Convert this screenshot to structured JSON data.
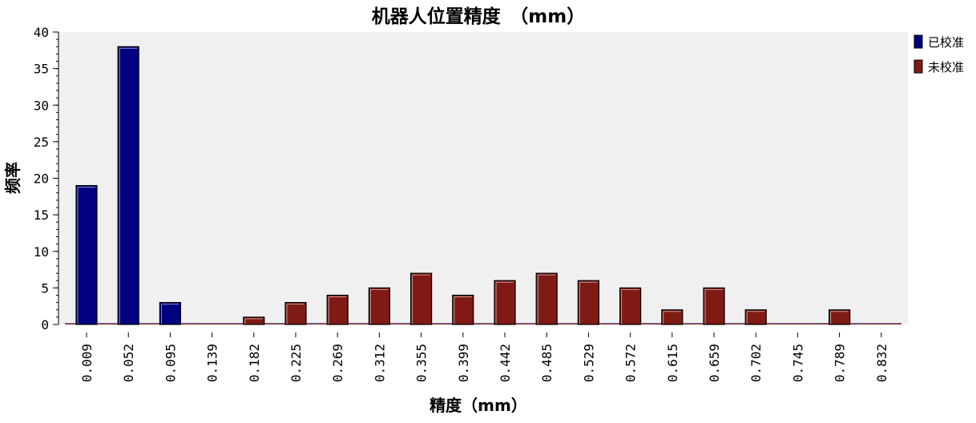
{
  "chart_data": {
    "type": "bar",
    "title": "机器人位置精度　（mm）",
    "xlabel": "精度（mm）",
    "ylabel": "频率",
    "ylim": [
      0,
      40
    ],
    "yticks": [
      0,
      5,
      10,
      15,
      20,
      25,
      30,
      35,
      40
    ],
    "categories": [
      "0.009",
      "0.052",
      "0.095",
      "0.139",
      "0.182",
      "0.225",
      "0.269",
      "0.312",
      "0.355",
      "0.399",
      "0.442",
      "0.485",
      "0.529",
      "0.572",
      "0.615",
      "0.659",
      "0.702",
      "0.745",
      "0.789",
      "0.832"
    ],
    "series": [
      {
        "name": "已校准",
        "color": "#000080",
        "values": [
          19,
          38,
          3,
          0,
          0,
          0,
          0,
          0,
          0,
          0,
          0,
          0,
          0,
          0,
          0,
          0,
          0,
          0,
          0,
          0
        ]
      },
      {
        "name": "未校准",
        "color": "#7f1a14",
        "values": [
          0,
          0,
          0,
          0,
          1,
          3,
          4,
          5,
          7,
          4,
          6,
          7,
          6,
          5,
          2,
          5,
          2,
          0,
          2,
          0
        ]
      }
    ],
    "legend_position": "right",
    "grid": false,
    "plot_background": "#f0f0f0"
  }
}
